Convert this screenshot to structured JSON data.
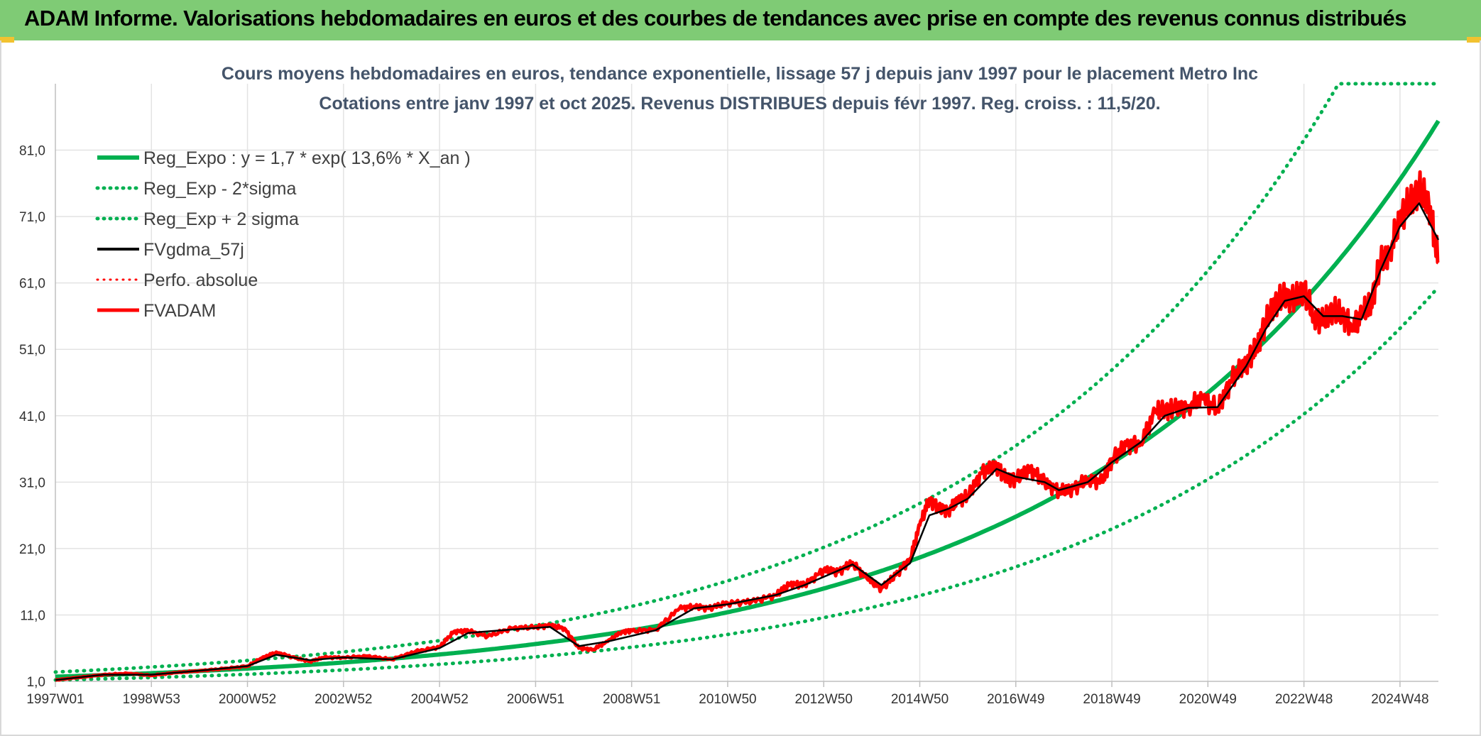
{
  "banner": {
    "title": "ADAM Informe. Valorisations hebdomadaires en euros et des courbes de tendances avec prise en compte des revenus connus distribués"
  },
  "colors": {
    "banner_bg": "#7fcb75",
    "trend": "#00b050",
    "fvgdma": "#000000",
    "fvadam": "#ff0000",
    "perfo": "#ff0000"
  },
  "chart_data": {
    "type": "line",
    "title": "Cours moyens hebdomadaires en euros, tendance exponentielle, lissage 57 j depuis janv 1997 pour le placement Metro Inc",
    "subtitle": "Cotations entre janv 1997 et oct 2025. Revenus DISTRIBUES depuis févr 1997. Reg. croiss. : 11,5/20.",
    "xlabel": "",
    "ylabel": "",
    "x_ticks": [
      "1997W01",
      "1998W53",
      "2000W52",
      "2002W52",
      "2004W52",
      "2006W51",
      "2008W51",
      "2010W50",
      "2012W50",
      "2014W50",
      "2016W49",
      "2018W49",
      "2020W49",
      "2022W48",
      "2024W48"
    ],
    "x_tick_years": [
      1997.0,
      1999.0,
      2001.0,
      2003.0,
      2005.0,
      2007.0,
      2009.0,
      2011.0,
      2013.0,
      2015.0,
      2017.0,
      2019.0,
      2021.0,
      2023.0,
      2025.0
    ],
    "xlim": [
      1997.0,
      2025.8
    ],
    "y_ticks": [
      "1,0",
      "11,0",
      "21,0",
      "31,0",
      "41,0",
      "51,0",
      "61,0",
      "71,0",
      "81,0"
    ],
    "ylim": [
      1.0,
      91.0
    ],
    "grid": true,
    "legend_position": "top-left",
    "trend": {
      "a": 1.7,
      "rate": 0.136,
      "x0": 1997.0,
      "band_factor_low": 0.707,
      "band_factor_high": 1.414,
      "clip_max": 91.0
    },
    "legend": [
      {
        "label": "Reg_Expo : y = 1,7 * exp( 13,6% *  X_an )",
        "color": "#00b050",
        "style": "solid",
        "width": 6
      },
      {
        "label": "Reg_Exp - 2*sigma",
        "color": "#00b050",
        "style": "dotted",
        "width": 5
      },
      {
        "label": "Reg_Exp + 2 sigma",
        "color": "#00b050",
        "style": "dotted",
        "width": 5
      },
      {
        "label": "FVgdma_57j",
        "color": "#000000",
        "style": "solid",
        "width": 4
      },
      {
        "label": "Perfo. absolue",
        "color": "#ff0000",
        "style": "dotted",
        "width": 3
      },
      {
        "label": "FVADAM",
        "color": "#ff0000",
        "style": "solid",
        "width": 5
      }
    ],
    "series": [
      {
        "name": "FVADAM",
        "x": [
          1997.0,
          1997.5,
          1998.0,
          1998.5,
          1999.0,
          1999.5,
          2000.0,
          2000.5,
          2001.0,
          2001.3,
          2001.6,
          2002.0,
          2002.3,
          2002.6,
          2003.0,
          2003.5,
          2004.0,
          2004.5,
          2005.0,
          2005.3,
          2005.6,
          2006.0,
          2006.5,
          2007.0,
          2007.3,
          2007.6,
          2007.9,
          2008.2,
          2008.5,
          2008.8,
          2009.0,
          2009.5,
          2010.0,
          2010.3,
          2010.6,
          2011.0,
          2011.5,
          2012.0,
          2012.3,
          2012.6,
          2013.0,
          2013.3,
          2013.6,
          2013.9,
          2014.2,
          2014.5,
          2014.8,
          2015.0,
          2015.2,
          2015.4,
          2015.6,
          2015.8,
          2016.0,
          2016.3,
          2016.6,
          2016.8,
          2017.0,
          2017.3,
          2017.6,
          2017.9,
          2018.2,
          2018.5,
          2018.8,
          2019.0,
          2019.3,
          2019.6,
          2019.9,
          2020.1,
          2020.3,
          2020.6,
          2020.9,
          2021.2,
          2021.5,
          2021.8,
          2022.0,
          2022.2,
          2022.4,
          2022.6,
          2022.8,
          2023.0,
          2023.2,
          2023.4,
          2023.6,
          2023.8,
          2024.0,
          2024.2,
          2024.4,
          2024.6,
          2024.8,
          2025.0,
          2025.2,
          2025.4,
          2025.6,
          2025.8
        ],
        "y": [
          1.2,
          1.6,
          2.0,
          2.2,
          1.9,
          2.3,
          2.6,
          2.9,
          3.3,
          4.5,
          5.4,
          4.5,
          4.0,
          4.6,
          4.6,
          4.8,
          4.3,
          5.5,
          6.2,
          8.5,
          8.6,
          7.8,
          9.0,
          9.2,
          9.4,
          9.0,
          6.0,
          5.8,
          7.0,
          8.5,
          8.6,
          8.8,
          12.0,
          12.3,
          12.0,
          12.8,
          13.0,
          14.0,
          15.7,
          15.5,
          17.8,
          17.5,
          18.9,
          16.5,
          15.0,
          17.0,
          19.5,
          24.5,
          28.5,
          27.0,
          26.8,
          28.2,
          29.0,
          32.5,
          33.5,
          31.5,
          31.5,
          33.0,
          31.0,
          29.6,
          30.0,
          31.5,
          31.0,
          34.5,
          36.5,
          37.0,
          41.5,
          42.0,
          42.0,
          42.5,
          43.5,
          42.0,
          46.5,
          49.0,
          51.0,
          55.0,
          58.0,
          59.0,
          58.5,
          60.0,
          56.0,
          55.0,
          57.0,
          56.0,
          54.5,
          56.0,
          58.0,
          64.0,
          66.0,
          70.5,
          73.0,
          75.0,
          73.0,
          64.0
        ]
      },
      {
        "name": "FVgdma_57j",
        "x": [
          1997.0,
          1998.0,
          1999.0,
          2000.0,
          2001.0,
          2001.6,
          2002.3,
          2003.0,
          2004.0,
          2005.0,
          2005.6,
          2006.5,
          2007.3,
          2007.9,
          2008.5,
          2009.5,
          2010.3,
          2011.0,
          2012.0,
          2012.6,
          2013.6,
          2014.2,
          2014.8,
          2015.2,
          2015.6,
          2016.0,
          2016.6,
          2017.0,
          2017.6,
          2017.9,
          2018.5,
          2019.0,
          2019.6,
          2020.1,
          2020.6,
          2021.2,
          2021.8,
          2022.2,
          2022.6,
          2023.0,
          2023.4,
          2023.8,
          2024.2,
          2024.6,
          2025.0,
          2025.4,
          2025.8
        ],
        "y": [
          1.2,
          2.0,
          2.0,
          2.6,
          3.3,
          5.0,
          4.2,
          4.6,
          4.3,
          6.0,
          8.3,
          8.8,
          9.2,
          6.3,
          7.0,
          8.7,
          12.0,
          12.6,
          14.0,
          15.5,
          18.6,
          15.5,
          18.8,
          26.0,
          27.0,
          28.5,
          33.0,
          31.8,
          31.0,
          29.8,
          31.0,
          34.0,
          37.0,
          41.0,
          42.2,
          42.3,
          48.5,
          54.0,
          58.3,
          59.0,
          56.0,
          56.0,
          55.5,
          63.0,
          69.5,
          73.0,
          67.5
        ]
      }
    ]
  }
}
